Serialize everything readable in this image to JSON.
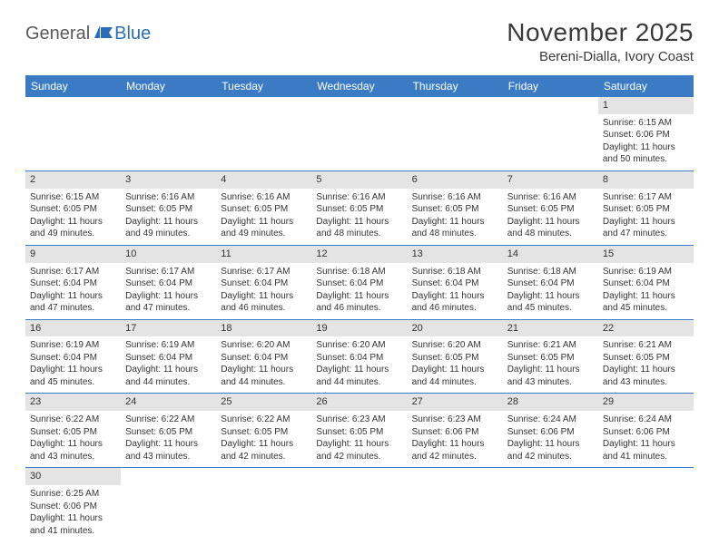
{
  "logo": {
    "general": "General",
    "blue": "Blue"
  },
  "title": "November 2025",
  "location": "Bereni-Dialla, Ivory Coast",
  "colors": {
    "header_bg": "#3a7bc4",
    "header_fg": "#ffffff",
    "daynum_bg": "#e4e4e4",
    "border": "#3a7bc4",
    "logo_general": "#5a5a5a",
    "logo_blue": "#2a6db8"
  },
  "day_headers": [
    "Sunday",
    "Monday",
    "Tuesday",
    "Wednesday",
    "Thursday",
    "Friday",
    "Saturday"
  ],
  "weeks": [
    [
      {
        "num": "",
        "empty": true
      },
      {
        "num": "",
        "empty": true
      },
      {
        "num": "",
        "empty": true
      },
      {
        "num": "",
        "empty": true
      },
      {
        "num": "",
        "empty": true
      },
      {
        "num": "",
        "empty": true
      },
      {
        "num": "1",
        "sunrise": "Sunrise: 6:15 AM",
        "sunset": "Sunset: 6:06 PM",
        "daylight": "Daylight: 11 hours and 50 minutes."
      }
    ],
    [
      {
        "num": "2",
        "sunrise": "Sunrise: 6:15 AM",
        "sunset": "Sunset: 6:05 PM",
        "daylight": "Daylight: 11 hours and 49 minutes."
      },
      {
        "num": "3",
        "sunrise": "Sunrise: 6:16 AM",
        "sunset": "Sunset: 6:05 PM",
        "daylight": "Daylight: 11 hours and 49 minutes."
      },
      {
        "num": "4",
        "sunrise": "Sunrise: 6:16 AM",
        "sunset": "Sunset: 6:05 PM",
        "daylight": "Daylight: 11 hours and 49 minutes."
      },
      {
        "num": "5",
        "sunrise": "Sunrise: 6:16 AM",
        "sunset": "Sunset: 6:05 PM",
        "daylight": "Daylight: 11 hours and 48 minutes."
      },
      {
        "num": "6",
        "sunrise": "Sunrise: 6:16 AM",
        "sunset": "Sunset: 6:05 PM",
        "daylight": "Daylight: 11 hours and 48 minutes."
      },
      {
        "num": "7",
        "sunrise": "Sunrise: 6:16 AM",
        "sunset": "Sunset: 6:05 PM",
        "daylight": "Daylight: 11 hours and 48 minutes."
      },
      {
        "num": "8",
        "sunrise": "Sunrise: 6:17 AM",
        "sunset": "Sunset: 6:05 PM",
        "daylight": "Daylight: 11 hours and 47 minutes."
      }
    ],
    [
      {
        "num": "9",
        "sunrise": "Sunrise: 6:17 AM",
        "sunset": "Sunset: 6:04 PM",
        "daylight": "Daylight: 11 hours and 47 minutes."
      },
      {
        "num": "10",
        "sunrise": "Sunrise: 6:17 AM",
        "sunset": "Sunset: 6:04 PM",
        "daylight": "Daylight: 11 hours and 47 minutes."
      },
      {
        "num": "11",
        "sunrise": "Sunrise: 6:17 AM",
        "sunset": "Sunset: 6:04 PM",
        "daylight": "Daylight: 11 hours and 46 minutes."
      },
      {
        "num": "12",
        "sunrise": "Sunrise: 6:18 AM",
        "sunset": "Sunset: 6:04 PM",
        "daylight": "Daylight: 11 hours and 46 minutes."
      },
      {
        "num": "13",
        "sunrise": "Sunrise: 6:18 AM",
        "sunset": "Sunset: 6:04 PM",
        "daylight": "Daylight: 11 hours and 46 minutes."
      },
      {
        "num": "14",
        "sunrise": "Sunrise: 6:18 AM",
        "sunset": "Sunset: 6:04 PM",
        "daylight": "Daylight: 11 hours and 45 minutes."
      },
      {
        "num": "15",
        "sunrise": "Sunrise: 6:19 AM",
        "sunset": "Sunset: 6:04 PM",
        "daylight": "Daylight: 11 hours and 45 minutes."
      }
    ],
    [
      {
        "num": "16",
        "sunrise": "Sunrise: 6:19 AM",
        "sunset": "Sunset: 6:04 PM",
        "daylight": "Daylight: 11 hours and 45 minutes."
      },
      {
        "num": "17",
        "sunrise": "Sunrise: 6:19 AM",
        "sunset": "Sunset: 6:04 PM",
        "daylight": "Daylight: 11 hours and 44 minutes."
      },
      {
        "num": "18",
        "sunrise": "Sunrise: 6:20 AM",
        "sunset": "Sunset: 6:04 PM",
        "daylight": "Daylight: 11 hours and 44 minutes."
      },
      {
        "num": "19",
        "sunrise": "Sunrise: 6:20 AM",
        "sunset": "Sunset: 6:04 PM",
        "daylight": "Daylight: 11 hours and 44 minutes."
      },
      {
        "num": "20",
        "sunrise": "Sunrise: 6:20 AM",
        "sunset": "Sunset: 6:05 PM",
        "daylight": "Daylight: 11 hours and 44 minutes."
      },
      {
        "num": "21",
        "sunrise": "Sunrise: 6:21 AM",
        "sunset": "Sunset: 6:05 PM",
        "daylight": "Daylight: 11 hours and 43 minutes."
      },
      {
        "num": "22",
        "sunrise": "Sunrise: 6:21 AM",
        "sunset": "Sunset: 6:05 PM",
        "daylight": "Daylight: 11 hours and 43 minutes."
      }
    ],
    [
      {
        "num": "23",
        "sunrise": "Sunrise: 6:22 AM",
        "sunset": "Sunset: 6:05 PM",
        "daylight": "Daylight: 11 hours and 43 minutes."
      },
      {
        "num": "24",
        "sunrise": "Sunrise: 6:22 AM",
        "sunset": "Sunset: 6:05 PM",
        "daylight": "Daylight: 11 hours and 43 minutes."
      },
      {
        "num": "25",
        "sunrise": "Sunrise: 6:22 AM",
        "sunset": "Sunset: 6:05 PM",
        "daylight": "Daylight: 11 hours and 42 minutes."
      },
      {
        "num": "26",
        "sunrise": "Sunrise: 6:23 AM",
        "sunset": "Sunset: 6:05 PM",
        "daylight": "Daylight: 11 hours and 42 minutes."
      },
      {
        "num": "27",
        "sunrise": "Sunrise: 6:23 AM",
        "sunset": "Sunset: 6:06 PM",
        "daylight": "Daylight: 11 hours and 42 minutes."
      },
      {
        "num": "28",
        "sunrise": "Sunrise: 6:24 AM",
        "sunset": "Sunset: 6:06 PM",
        "daylight": "Daylight: 11 hours and 42 minutes."
      },
      {
        "num": "29",
        "sunrise": "Sunrise: 6:24 AM",
        "sunset": "Sunset: 6:06 PM",
        "daylight": "Daylight: 11 hours and 41 minutes."
      }
    ],
    [
      {
        "num": "30",
        "sunrise": "Sunrise: 6:25 AM",
        "sunset": "Sunset: 6:06 PM",
        "daylight": "Daylight: 11 hours and 41 minutes."
      },
      {
        "num": "",
        "empty": true
      },
      {
        "num": "",
        "empty": true
      },
      {
        "num": "",
        "empty": true
      },
      {
        "num": "",
        "empty": true
      },
      {
        "num": "",
        "empty": true
      },
      {
        "num": "",
        "empty": true
      }
    ]
  ]
}
